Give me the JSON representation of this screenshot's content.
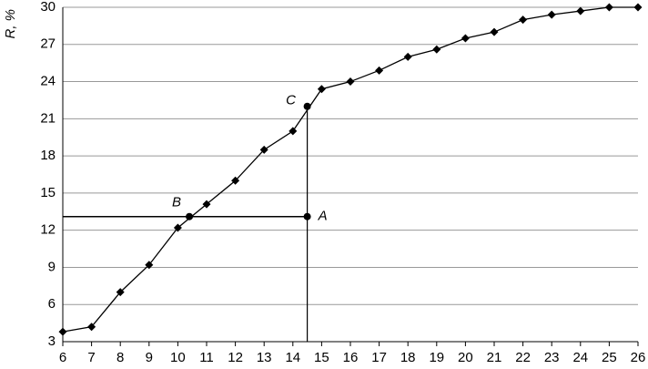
{
  "chart_data": {
    "type": "line",
    "y_label": "R, %",
    "x": [
      6,
      7,
      8,
      9,
      10,
      11,
      12,
      13,
      14,
      15,
      16,
      17,
      18,
      19,
      20,
      21,
      22,
      23,
      24,
      25,
      26
    ],
    "values": [
      3.8,
      4.2,
      7.0,
      9.2,
      12.2,
      14.1,
      16.0,
      18.5,
      20.0,
      23.4,
      24.0,
      24.9,
      26.0,
      26.6,
      27.5,
      28.0,
      29.0,
      29.4,
      29.7,
      30.0,
      30.0
    ],
    "color": "#000000",
    "xlim": [
      6,
      26
    ],
    "xticks": [
      6,
      7,
      8,
      9,
      10,
      11,
      12,
      13,
      14,
      15,
      16,
      17,
      18,
      19,
      20,
      21,
      22,
      23,
      24,
      25,
      26
    ],
    "ylim": [
      3,
      30
    ],
    "yticks": [
      3,
      6,
      9,
      12,
      15,
      18,
      21,
      24,
      27,
      30
    ],
    "grid": true,
    "points": [
      {
        "label": "A",
        "x": 14.5,
        "y": 13.1
      },
      {
        "label": "B",
        "x": 10.4,
        "y": 13.1
      },
      {
        "label": "C",
        "x": 14.5,
        "y": 22.0
      }
    ]
  }
}
